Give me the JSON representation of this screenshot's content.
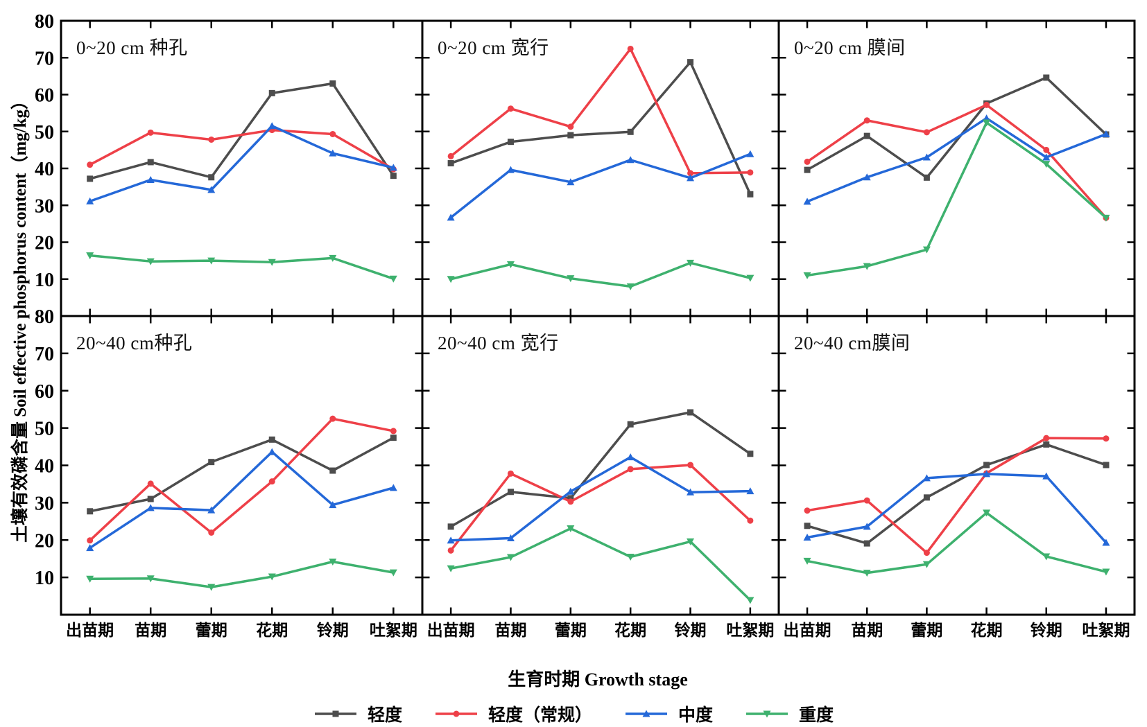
{
  "figure": {
    "y_axis_title": "土壤有效磷含量 Soil effective phosphorus content（mg/kg）",
    "x_axis_title": "生育时期 Growth stage"
  },
  "chart_data": {
    "type": "line",
    "categories": [
      "出苗期",
      "苗期",
      "蕾期",
      "花期",
      "铃期",
      "吐絮期"
    ],
    "y_ticks": [
      10,
      20,
      30,
      40,
      50,
      60,
      70,
      80
    ],
    "ylim": [
      0,
      80
    ],
    "xlabel": "生育时期 Growth stage",
    "ylabel": "土壤有效磷含量 Soil effective phosphorus content（mg/kg）",
    "grid": false,
    "legend_position": "bottom",
    "series_defs": [
      {
        "name": "轻度",
        "color": "#4d4d4d",
        "marker": "square"
      },
      {
        "name": "轻度（常规）",
        "color": "#ee4048",
        "marker": "circle"
      },
      {
        "name": "中度",
        "color": "#2468d8",
        "marker": "triangle-up"
      },
      {
        "name": "重度",
        "color": "#3eb16e",
        "marker": "triangle-down"
      }
    ],
    "panels": [
      {
        "title": "0~20 cm 种孔",
        "row": 0,
        "col": 0,
        "series": [
          {
            "name": "轻度",
            "values": [
              37.2,
              41.7,
              37.6,
              60.4,
              63.0,
              38.0
            ]
          },
          {
            "name": "轻度（常规）",
            "values": [
              41.0,
              49.7,
              47.8,
              50.4,
              49.3,
              39.8
            ]
          },
          {
            "name": "中度",
            "values": [
              31.1,
              36.9,
              34.2,
              51.5,
              44.1,
              40.2
            ]
          },
          {
            "name": "重度",
            "values": [
              16.4,
              14.8,
              15.0,
              14.6,
              15.7,
              10.1
            ]
          }
        ]
      },
      {
        "title": "0~20 cm 宽行",
        "row": 0,
        "col": 1,
        "series": [
          {
            "name": "轻度",
            "values": [
              41.4,
              47.2,
              49.0,
              49.9,
              68.8,
              33.0
            ]
          },
          {
            "name": "轻度（常规）",
            "values": [
              43.3,
              56.2,
              51.3,
              72.4,
              38.7,
              38.9
            ]
          },
          {
            "name": "中度",
            "values": [
              26.7,
              39.6,
              36.3,
              42.3,
              37.4,
              43.9
            ]
          },
          {
            "name": "重度",
            "values": [
              10.0,
              14.0,
              10.2,
              8.0,
              14.4,
              10.3
            ]
          }
        ]
      },
      {
        "title": "0~20 cm 膜间",
        "row": 0,
        "col": 2,
        "series": [
          {
            "name": "轻度",
            "values": [
              39.6,
              48.8,
              37.5,
              57.6,
              64.6,
              49.2
            ]
          },
          {
            "name": "轻度（常规）",
            "values": [
              41.8,
              53.0,
              49.8,
              57.2,
              45.0,
              26.6
            ]
          },
          {
            "name": "中度",
            "values": [
              31.0,
              37.6,
              43.0,
              53.6,
              43.0,
              49.3
            ]
          },
          {
            "name": "重度",
            "values": [
              11.0,
              13.5,
              18.0,
              52.4,
              41.2,
              26.6
            ]
          }
        ]
      },
      {
        "title": "20~40 cm种孔",
        "row": 1,
        "col": 0,
        "series": [
          {
            "name": "轻度",
            "values": [
              27.7,
              31.0,
              40.9,
              46.9,
              38.6,
              47.4
            ]
          },
          {
            "name": "轻度（常规）",
            "values": [
              19.9,
              35.1,
              22.0,
              35.7,
              52.5,
              49.2
            ]
          },
          {
            "name": "中度",
            "values": [
              17.9,
              28.6,
              28.0,
              43.6,
              29.4,
              34.0
            ]
          },
          {
            "name": "重度",
            "values": [
              9.6,
              9.7,
              7.4,
              10.2,
              14.2,
              11.3
            ]
          }
        ]
      },
      {
        "title": "20~40 cm 宽行",
        "row": 1,
        "col": 1,
        "series": [
          {
            "name": "轻度",
            "values": [
              23.6,
              32.9,
              31.2,
              51.0,
              54.2,
              43.1
            ]
          },
          {
            "name": "轻度（常规）",
            "values": [
              17.2,
              37.8,
              30.3,
              39.0,
              40.1,
              25.2
            ]
          },
          {
            "name": "中度",
            "values": [
              19.9,
              20.5,
              33.0,
              42.2,
              32.8,
              33.1
            ]
          },
          {
            "name": "重度",
            "values": [
              12.4,
              15.4,
              23.1,
              15.5,
              19.6,
              3.9
            ]
          }
        ]
      },
      {
        "title": "20~40 cm膜间",
        "row": 1,
        "col": 2,
        "series": [
          {
            "name": "轻度",
            "values": [
              23.8,
              19.1,
              31.4,
              40.1,
              45.6,
              40.1
            ]
          },
          {
            "name": "轻度（常规）",
            "values": [
              27.9,
              30.6,
              16.6,
              37.9,
              47.3,
              47.2
            ]
          },
          {
            "name": "中度",
            "values": [
              20.7,
              23.6,
              36.6,
              37.7,
              37.1,
              19.3
            ]
          },
          {
            "name": "重度",
            "values": [
              14.4,
              11.2,
              13.5,
              27.3,
              15.6,
              11.5
            ]
          }
        ]
      }
    ]
  }
}
